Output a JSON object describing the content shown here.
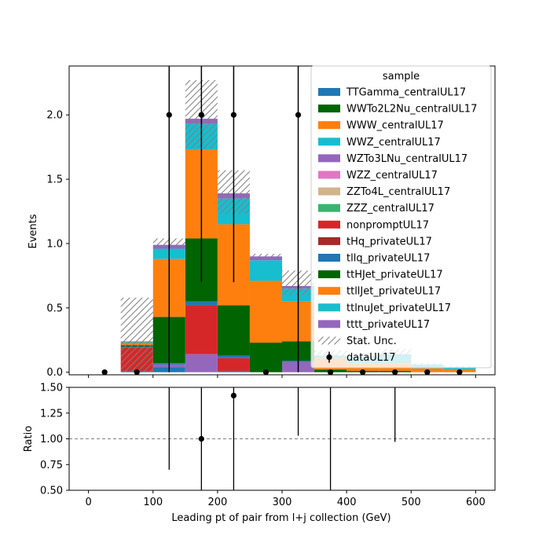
{
  "chart_data": [
    {
      "type": "bar",
      "panel": "main",
      "xlabel": "",
      "ylabel": "Events",
      "xlim": [
        -30,
        630
      ],
      "ylim": [
        -0.02,
        2.38
      ],
      "bin_edges": [
        0,
        50,
        100,
        150,
        200,
        250,
        300,
        350,
        400,
        450,
        500,
        550,
        600
      ],
      "yticks": [
        0.0,
        0.5,
        1.0,
        1.5,
        2.0
      ],
      "ytick_labels": [
        "0.0",
        "0.5",
        "1.0",
        "1.5",
        "2.0"
      ],
      "xticks": [
        0,
        100,
        200,
        300,
        400,
        500,
        600
      ],
      "grid": false,
      "legend": {
        "title": "sample",
        "placement": "top-right",
        "stat_label": "Stat. Unc.",
        "data_label": "dataUL17"
      },
      "series": [
        {
          "name": "TTGamma_centralUL17",
          "color": "#1f77b4",
          "values": [
            0,
            0.01,
            0.04,
            0,
            0.01,
            0,
            0,
            0,
            0,
            0,
            0,
            0
          ]
        },
        {
          "name": "WWTo2L2Nu_centralUL17",
          "color": "#006400",
          "values": [
            0,
            0,
            0,
            0,
            0,
            0,
            0,
            0,
            0,
            0,
            0,
            0
          ]
        },
        {
          "name": "WWW_centralUL17",
          "color": "#ff7f0e",
          "values": [
            0,
            0,
            0,
            0,
            0,
            0,
            0,
            0,
            0,
            0,
            0,
            0
          ]
        },
        {
          "name": "WWZ_centralUL17",
          "color": "#17becf",
          "values": [
            0,
            0,
            0,
            0,
            0,
            0,
            0,
            0,
            0,
            0,
            0,
            0
          ]
        },
        {
          "name": "WZTo3LNu_centralUL17",
          "color": "#9467bd",
          "values": [
            0,
            0,
            0.02,
            0.14,
            0,
            0,
            0.08,
            0,
            0,
            0,
            0,
            0
          ]
        },
        {
          "name": "WZZ_centralUL17",
          "color": "#e377c2",
          "values": [
            0,
            0,
            0,
            0,
            0,
            0,
            0,
            0,
            0,
            0,
            0,
            0
          ]
        },
        {
          "name": "ZZTo4L_centralUL17",
          "color": "#d2b48c",
          "values": [
            0,
            0,
            0,
            0,
            0,
            0,
            0,
            0,
            0,
            0,
            0,
            0
          ]
        },
        {
          "name": "ZZZ_centralUL17",
          "color": "#3cb371",
          "values": [
            0,
            0,
            0,
            0,
            0,
            0,
            0,
            0,
            0,
            0,
            0,
            0
          ]
        },
        {
          "name": "nonpromptUL17",
          "color": "#d62728",
          "values": [
            0,
            0.18,
            0,
            0.38,
            0.1,
            0,
            0,
            0,
            0,
            0,
            0,
            0
          ]
        },
        {
          "name": "tHq_privateUL17",
          "color": "#a52a2a",
          "values": [
            0,
            0,
            0,
            0,
            0,
            0,
            0,
            0,
            0,
            0,
            0,
            0
          ]
        },
        {
          "name": "tllq_privateUL17",
          "color": "#1f77b4",
          "values": [
            0,
            0.01,
            0.01,
            0.03,
            0.02,
            0,
            0.01,
            0,
            0,
            0,
            0,
            0
          ]
        },
        {
          "name": "ttHJet_privateUL17",
          "color": "#006400",
          "values": [
            0,
            0.01,
            0.36,
            0.49,
            0.39,
            0.23,
            0.15,
            0.02,
            0.01,
            0.01,
            0,
            0
          ]
        },
        {
          "name": "ttllJet_privateUL17",
          "color": "#ff7f0e",
          "values": [
            0,
            0.02,
            0.45,
            0.69,
            0.63,
            0.48,
            0.31,
            0.09,
            0.06,
            0.06,
            0.03,
            0.02
          ]
        },
        {
          "name": "ttlnuJet_privateUL17",
          "color": "#17becf",
          "values": [
            0,
            0.01,
            0.08,
            0.2,
            0.2,
            0.16,
            0.1,
            0.02,
            0.05,
            0.07,
            0.03,
            0.02
          ]
        },
        {
          "name": "tttt_privateUL17",
          "color": "#9467bd",
          "values": [
            0,
            0,
            0.03,
            0.04,
            0.04,
            0.03,
            0.02,
            0,
            0,
            0,
            0,
            0
          ]
        }
      ],
      "stat_unc": {
        "lower": [
          0,
          0,
          0.97,
          1.74,
          1.23,
          0.89,
          0.6,
          0.09,
          0.08,
          0.1,
          0.05,
          0.03
        ],
        "upper": [
          0,
          0.58,
          1.04,
          2.27,
          1.57,
          0.92,
          0.79,
          0.17,
          0.15,
          0.18,
          0.07,
          0.05
        ]
      },
      "data_points": {
        "x": [
          25,
          75,
          125,
          175,
          225,
          275,
          325,
          375,
          425,
          475,
          525,
          575
        ],
        "y": [
          0,
          0,
          2,
          2,
          2,
          0,
          2,
          0,
          0,
          0,
          0,
          0
        ],
        "yerr_up": [
          0,
          0,
          3,
          3,
          3,
          0,
          3,
          0,
          0,
          0,
          0,
          0
        ],
        "yerr_down": [
          0,
          0,
          2,
          1.3,
          1.3,
          0,
          2,
          0,
          0,
          0,
          0,
          0
        ]
      }
    },
    {
      "type": "scatter",
      "panel": "ratio",
      "xlabel": "Leading pt of pair from l+j collection (GeV)",
      "ylabel": "Ratio",
      "xlim": [
        -30,
        630
      ],
      "ylim": [
        0.5,
        1.5
      ],
      "xticks": [
        0,
        100,
        200,
        300,
        400,
        500,
        600
      ],
      "xtick_labels": [
        "0",
        "100",
        "200",
        "300",
        "400",
        "500",
        "600"
      ],
      "yticks": [
        0.5,
        0.75,
        1.0,
        1.25,
        1.5
      ],
      "ytick_labels": [
        "0.50",
        "0.75",
        "1.00",
        "1.25",
        "1.50"
      ],
      "reference_line": 1.0,
      "grid": false,
      "points": {
        "x": [
          175,
          225
        ],
        "y": [
          1.0,
          1.42
        ]
      },
      "error_bars": [
        {
          "x": 125,
          "low": 0.7,
          "high": 1.5
        },
        {
          "x": 175,
          "low": 0.5,
          "high": 1.5
        },
        {
          "x": 225,
          "low": 0.5,
          "high": 1.5
        },
        {
          "x": 325,
          "low": 1.03,
          "high": 1.5
        },
        {
          "x": 375,
          "low": 0.5,
          "high": 1.5
        },
        {
          "x": 475,
          "low": 0.97,
          "high": 1.5
        }
      ]
    }
  ]
}
